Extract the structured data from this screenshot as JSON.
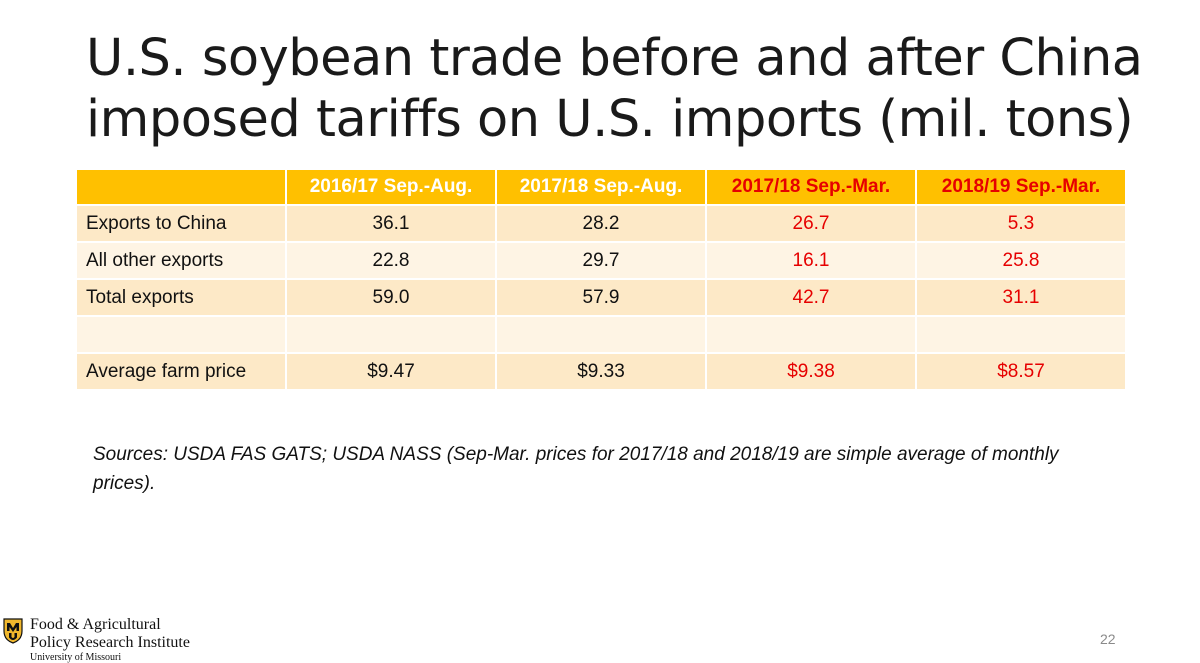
{
  "slide": {
    "title": "U.S. soybean trade before and after China imposed tariffs on U.S. imports (mil. tons)",
    "sources": "Sources: USDA FAS GATS; USDA NASS (Sep-Mar. prices for 2017/18 and 2018/19 are simple average of monthly prices).",
    "page_number": "22"
  },
  "table": {
    "corner": "",
    "columns": [
      "2016/17 Sep.-Aug.",
      "2017/18 Sep.-Aug.",
      "2017/18 Sep.-Mar.",
      "2018/19 Sep.-Mar."
    ],
    "rows": [
      {
        "label": "Exports to China",
        "values": [
          "36.1",
          "28.2",
          "26.7",
          "5.3"
        ]
      },
      {
        "label": "All other exports",
        "values": [
          "22.8",
          "29.7",
          "16.1",
          "25.8"
        ]
      },
      {
        "label": "Total exports",
        "values": [
          "59.0",
          "57.9",
          "42.7",
          "31.1"
        ]
      },
      {
        "label": "",
        "values": [
          "",
          "",
          "",
          ""
        ]
      },
      {
        "label": "Average farm price",
        "values": [
          "$9.47",
          "$9.33",
          "$9.38",
          "$8.57"
        ]
      }
    ]
  },
  "logo": {
    "line1": "Food & Agricultural",
    "line2": "Policy Research Institute",
    "line3": "University of Missouri"
  },
  "colors": {
    "header_bg": "#ffc000",
    "highlight_red": "#e60000",
    "row_odd": "#fde9c7",
    "row_even": "#fef4e4"
  }
}
